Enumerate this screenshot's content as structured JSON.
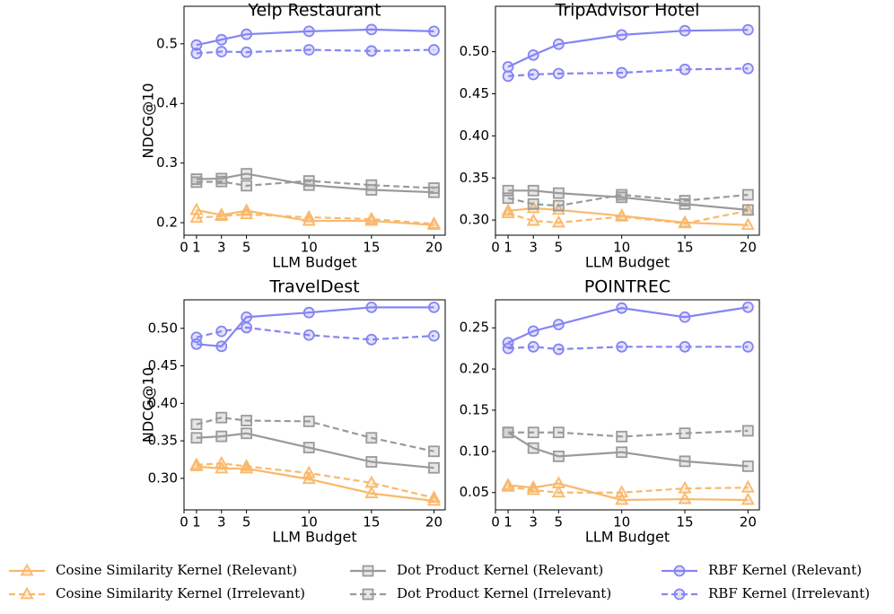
{
  "chart_data": [
    {
      "type": "line",
      "title": "Yelp Restaurant",
      "xlabel": "LLM Budget",
      "ylabel": "NDCG@10",
      "x": [
        1,
        3,
        5,
        10,
        15,
        20
      ],
      "xlim": [
        0,
        20.9
      ],
      "xticks": [
        0,
        1,
        3,
        5,
        10,
        15,
        20
      ],
      "ylim": [
        0.179,
        0.563
      ],
      "yticks": [
        0.2,
        0.3,
        0.4,
        0.5
      ],
      "series": [
        {
          "values": [
            0.221,
            0.213,
            0.22,
            0.203,
            0.203,
            0.196
          ]
        },
        {
          "values": [
            0.208,
            0.211,
            0.214,
            0.209,
            0.206,
            0.198
          ]
        },
        {
          "values": [
            0.273,
            0.274,
            0.282,
            0.263,
            0.255,
            0.251
          ]
        },
        {
          "values": [
            0.268,
            0.269,
            0.262,
            0.27,
            0.263,
            0.258
          ]
        },
        {
          "values": [
            0.498,
            0.507,
            0.516,
            0.521,
            0.524,
            0.521
          ]
        },
        {
          "values": [
            0.484,
            0.487,
            0.486,
            0.49,
            0.488,
            0.49
          ]
        }
      ]
    },
    {
      "type": "line",
      "title": "TripAdvisor Hotel",
      "xlabel": "LLM Budget",
      "x": [
        1,
        3,
        5,
        10,
        15,
        20
      ],
      "xlim": [
        0,
        20.9
      ],
      "xticks": [
        0,
        1,
        3,
        5,
        10,
        15,
        20
      ],
      "ylim": [
        0.282,
        0.554
      ],
      "yticks": [
        {
          "value": 0.3,
          "label": "0.30"
        },
        0.35,
        {
          "value": 0.4,
          "label": "0.40"
        },
        0.45,
        {
          "value": 0.5,
          "label": "0.50"
        }
      ],
      "series": [
        {
          "values": [
            0.311,
            0.314,
            0.312,
            0.305,
            0.297,
            0.294
          ]
        },
        {
          "values": [
            0.308,
            0.299,
            0.297,
            0.304,
            0.296,
            0.311
          ]
        },
        {
          "values": [
            0.335,
            0.335,
            0.332,
            0.327,
            0.319,
            0.312
          ]
        },
        {
          "values": [
            0.326,
            0.319,
            0.317,
            0.33,
            0.323,
            0.33
          ]
        },
        {
          "values": [
            0.482,
            0.496,
            0.509,
            0.52,
            0.525,
            0.526
          ]
        },
        {
          "values": [
            0.471,
            0.473,
            0.474,
            0.475,
            0.479,
            0.48
          ]
        }
      ]
    },
    {
      "type": "line",
      "title": "TravelDest",
      "xlabel": "LLM Budget",
      "ylabel": "NDCG@10",
      "x": [
        1,
        3,
        5,
        10,
        15,
        20
      ],
      "xlim": [
        0,
        20.9
      ],
      "xticks": [
        0,
        1,
        3,
        5,
        10,
        15,
        20
      ],
      "ylim": [
        0.258,
        0.538
      ],
      "yticks": [
        {
          "value": 0.3,
          "label": "0.30"
        },
        0.35,
        {
          "value": 0.4,
          "label": "0.40"
        },
        0.45,
        {
          "value": 0.5,
          "label": "0.50"
        }
      ],
      "series": [
        {
          "values": [
            0.316,
            0.313,
            0.313,
            0.299,
            0.28,
            0.27
          ]
        },
        {
          "values": [
            0.318,
            0.32,
            0.316,
            0.307,
            0.294,
            0.274
          ]
        },
        {
          "values": [
            0.354,
            0.356,
            0.36,
            0.341,
            0.322,
            0.314
          ]
        },
        {
          "values": [
            0.372,
            0.381,
            0.377,
            0.376,
            0.354,
            0.336
          ]
        },
        {
          "values": [
            0.479,
            0.476,
            0.515,
            0.521,
            0.528,
            0.528
          ]
        },
        {
          "values": [
            0.488,
            0.496,
            0.501,
            0.491,
            0.485,
            0.49
          ]
        }
      ]
    },
    {
      "type": "line",
      "title": "POINTREC",
      "xlabel": "LLM Budget",
      "x": [
        1,
        3,
        5,
        10,
        15,
        20
      ],
      "xlim": [
        0,
        20.9
      ],
      "xticks": [
        0,
        1,
        3,
        5,
        10,
        15,
        20
      ],
      "ylim": [
        0.029,
        0.284
      ],
      "yticks": [
        0.05,
        {
          "value": 0.1,
          "label": "0.10"
        },
        0.15,
        {
          "value": 0.2,
          "label": "0.20"
        },
        0.25
      ],
      "series": [
        {
          "values": [
            0.059,
            0.056,
            0.061,
            0.041,
            0.042,
            0.041
          ]
        },
        {
          "values": [
            0.057,
            0.053,
            0.05,
            0.05,
            0.055,
            0.056
          ]
        },
        {
          "values": [
            0.123,
            0.104,
            0.094,
            0.099,
            0.088,
            0.082
          ]
        },
        {
          "values": [
            0.123,
            0.123,
            0.123,
            0.118,
            0.122,
            0.125
          ]
        },
        {
          "values": [
            0.232,
            0.246,
            0.254,
            0.274,
            0.263,
            0.275
          ]
        },
        {
          "values": [
            0.225,
            0.227,
            0.224,
            0.227,
            0.227,
            0.227
          ]
        }
      ]
    }
  ],
  "legend": [
    {
      "name": "Cosine Similarity Kernel (Relevant)",
      "color": "#f9b96c",
      "marker": "triangle",
      "dashed": false
    },
    {
      "name": "Cosine Similarity Kernel (Irrelevant)",
      "color": "#f9b96c",
      "marker": "triangle",
      "dashed": true
    },
    {
      "name": "Dot Product Kernel (Relevant)",
      "color": "#9a9a9a",
      "marker": "square",
      "dashed": false
    },
    {
      "name": "Dot Product Kernel (Irrelevant)",
      "color": "#9a9a9a",
      "marker": "square",
      "dashed": true
    },
    {
      "name": "RBF Kernel (Relevant)",
      "color": "#8585f2",
      "marker": "circle",
      "dashed": false
    },
    {
      "name": "RBF Kernel (Irrelevant)",
      "color": "#8585f2",
      "marker": "circle",
      "dashed": true
    }
  ]
}
